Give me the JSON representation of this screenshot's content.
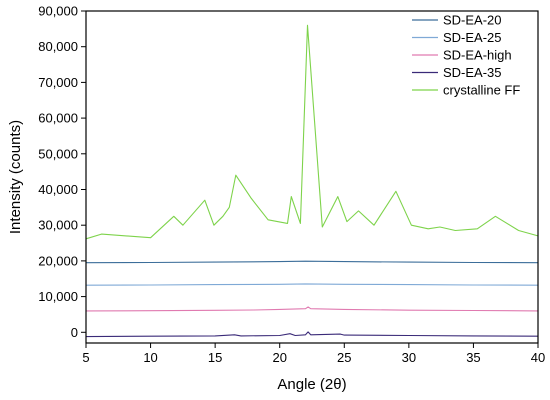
{
  "chart_data": {
    "type": "line",
    "title": "",
    "xlabel": "Angle (2θ)",
    "ylabel": "Intensity (counts)",
    "xlim": [
      5,
      40
    ],
    "ylim": [
      -3000,
      90000
    ],
    "xticks": [
      5,
      10,
      15,
      20,
      25,
      30,
      35,
      40
    ],
    "xtick_labels": [
      "5",
      "10",
      "15",
      "20",
      "25",
      "30",
      "35",
      "40"
    ],
    "yticks": [
      0,
      10000,
      20000,
      30000,
      40000,
      50000,
      60000,
      70000,
      80000,
      90000
    ],
    "ytick_labels": [
      "0",
      "10,000",
      "20,000",
      "30,000",
      "40,000",
      "50,000",
      "60,000",
      "70,000",
      "80,000",
      "90,000"
    ],
    "grid": false,
    "legend_position": "top-right",
    "series": [
      {
        "name": "SD-EA-20",
        "color": "#3c6e9a",
        "x": [
          5,
          10,
          15,
          20,
          22,
          25,
          30,
          35,
          40
        ],
        "y": [
          19500,
          19550,
          19650,
          19800,
          19900,
          19800,
          19650,
          19550,
          19500
        ]
      },
      {
        "name": "SD-EA-25",
        "color": "#7fa9d6",
        "x": [
          5,
          10,
          15,
          20,
          22,
          25,
          30,
          35,
          40
        ],
        "y": [
          13200,
          13250,
          13350,
          13450,
          13550,
          13450,
          13350,
          13250,
          13200
        ]
      },
      {
        "name": "SD-EA-high",
        "color": "#e07ab0",
        "x": [
          5,
          10,
          15,
          18,
          20,
          22,
          22.2,
          22.4,
          25,
          30,
          35,
          40
        ],
        "y": [
          6000,
          6050,
          6150,
          6250,
          6400,
          6600,
          7100,
          6600,
          6400,
          6200,
          6100,
          6000
        ]
      },
      {
        "name": "SD-EA-35",
        "color": "#3a2a78",
        "x": [
          5,
          10,
          15,
          16.5,
          17,
          20,
          20.8,
          21.2,
          22,
          22.2,
          22.4,
          24.7,
          25,
          30,
          35,
          40
        ],
        "y": [
          -1200,
          -1100,
          -1000,
          -700,
          -1000,
          -900,
          -400,
          -900,
          -700,
          100,
          -700,
          -500,
          -800,
          -900,
          -1000,
          -1100
        ]
      },
      {
        "name": "crystalline FF",
        "color": "#7ed34b",
        "x": [
          5,
          6.2,
          10,
          11.8,
          12.5,
          14.2,
          14.9,
          15.6,
          16.1,
          16.6,
          17.8,
          19.1,
          20.6,
          20.9,
          21.6,
          22.15,
          23.3,
          24.5,
          25.2,
          26.1,
          27.3,
          29.0,
          30.2,
          31.5,
          32.4,
          33.6,
          35.3,
          36.7,
          38.5,
          40
        ],
        "y": [
          26200,
          27500,
          26500,
          32500,
          30000,
          37000,
          30000,
          32500,
          35000,
          44000,
          37500,
          31500,
          30500,
          38000,
          30500,
          86000,
          29500,
          38000,
          31000,
          34000,
          30000,
          39500,
          30000,
          29000,
          29500,
          28500,
          29000,
          32500,
          28500,
          27000
        ]
      }
    ]
  }
}
